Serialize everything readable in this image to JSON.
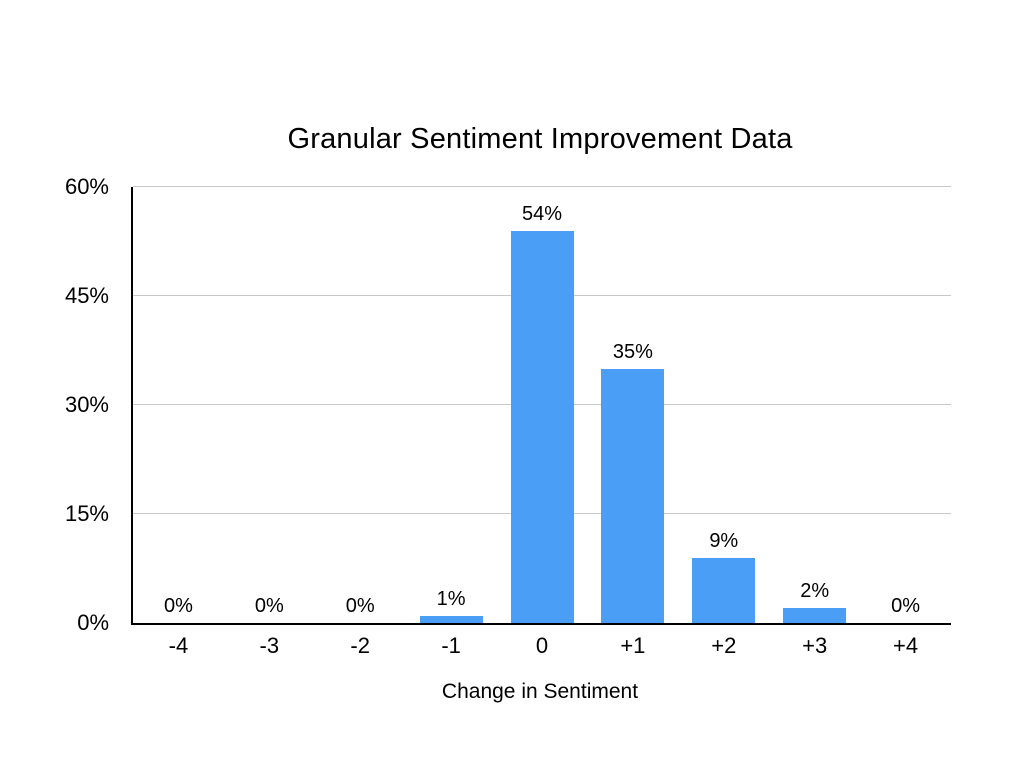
{
  "title": "Granular Sentiment Improvement Data",
  "chart_data": {
    "type": "bar",
    "title": "Granular Sentiment Improvement Data",
    "categories": [
      "-4",
      "-3",
      "-2",
      "-1",
      "0",
      "+1",
      "+2",
      "+3",
      "+4"
    ],
    "values": [
      0,
      0,
      0,
      1,
      54,
      35,
      9,
      2,
      0
    ],
    "data_labels": [
      "0%",
      "0%",
      "0%",
      "1%",
      "54%",
      "35%",
      "9%",
      "2%",
      "0%"
    ],
    "xlabel": "Change in Sentiment",
    "ylabel": "",
    "y_ticks": [
      0,
      15,
      30,
      45,
      60
    ],
    "y_tick_labels": [
      "0%",
      "15%",
      "30%",
      "45%",
      "60%"
    ],
    "ylim": [
      0,
      60
    ],
    "grid": true,
    "legend": "none",
    "bar_color": "#4a9ef5",
    "gridline_color": "#c8c8c8",
    "axis_color": "#000000",
    "text_color": "#000000",
    "background": "#ffffff"
  }
}
